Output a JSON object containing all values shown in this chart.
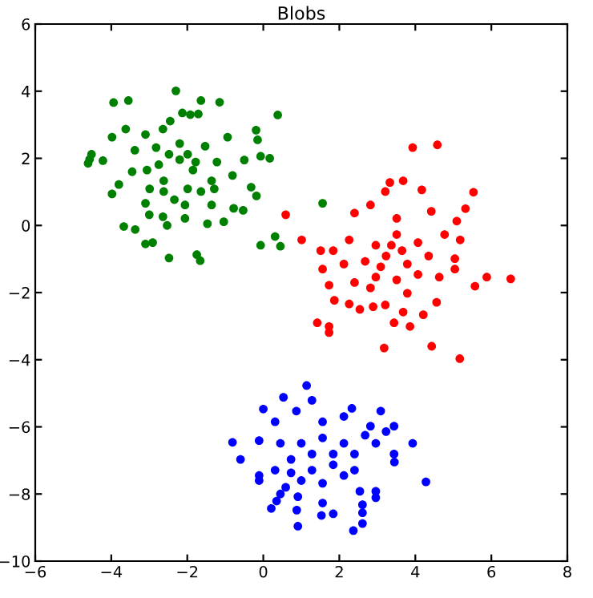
{
  "chart_data": {
    "type": "scatter",
    "title": "Blobs",
    "marker": "circle",
    "grid": false,
    "legend": false,
    "xlim": [
      -6,
      8
    ],
    "ylim": [
      -10,
      6
    ],
    "xticks": [
      -6,
      -4,
      -2,
      0,
      2,
      4,
      6,
      8
    ],
    "yticks": [
      -10,
      -8,
      -6,
      -4,
      -2,
      0,
      2,
      4,
      6
    ],
    "series": [
      {
        "color": "#008000",
        "x": [
          -2.3,
          -3.94,
          -3.55,
          -1.64,
          -1.15,
          0.38,
          -2.13,
          -1.92,
          -1.71,
          -3.62,
          -2.64,
          -2.45,
          -0.19,
          -0.15,
          -3.98,
          -3.1,
          -0.94,
          0.17,
          -4.22,
          -4.57,
          -4.52,
          -4.61,
          -3.38,
          -2.82,
          -2.2,
          -1.53,
          -0.5,
          -0.07,
          -3.98,
          -3.8,
          -3.45,
          -3.06,
          -2.62,
          -2.2,
          -1.85,
          -1.36,
          -0.81,
          -0.32,
          -0.18,
          -3.1,
          -3.0,
          -2.64,
          -2.06,
          -1.47,
          -1.04,
          -0.78,
          -0.53,
          -3.67,
          -3.37,
          -2.53,
          -3.1,
          -2.91,
          -2.48,
          -1.75,
          -1.66,
          -0.07,
          0.31,
          0.45,
          1.56,
          -2.62,
          -2.34,
          -1.99,
          -1.64,
          -1.29,
          -2.48,
          -1.99,
          -1.78,
          -2.75,
          -1.22,
          -2.99,
          -2.06,
          -1.36
        ],
        "values": [
          4.01,
          3.66,
          3.72,
          3.72,
          3.67,
          3.29,
          3.35,
          3.3,
          3.32,
          2.87,
          2.87,
          3.11,
          2.84,
          2.55,
          2.63,
          2.71,
          2.63,
          2.0,
          1.93,
          1.97,
          2.12,
          1.85,
          2.24,
          2.32,
          2.44,
          2.36,
          1.95,
          2.06,
          0.94,
          1.22,
          1.6,
          1.65,
          1.33,
          1.96,
          1.65,
          1.33,
          1.49,
          1.14,
          0.88,
          0.66,
          0.32,
          0.26,
          0.21,
          0.05,
          0.11,
          0.51,
          0.45,
          -0.03,
          -0.12,
          0.0,
          -0.55,
          -0.51,
          -0.97,
          -0.87,
          -1.05,
          -0.59,
          -0.33,
          -0.62,
          0.66,
          1.01,
          0.77,
          1.09,
          1.01,
          1.09,
          2.12,
          2.12,
          1.89,
          1.81,
          1.89,
          1.09,
          0.61,
          0.61
        ]
      },
      {
        "color": "#ff0000",
        "x": [
          3.93,
          4.58,
          3.33,
          3.68,
          5.53,
          5.32,
          0.59,
          1.01,
          3.21,
          4.17,
          4.42,
          5.09,
          2.4,
          2.82,
          3.51,
          1.51,
          1.84,
          2.26,
          2.96,
          3.51,
          4.07,
          4.77,
          5.18,
          1.56,
          2.12,
          2.68,
          3.23,
          3.79,
          4.35,
          5.04,
          5.88,
          6.51,
          5.57,
          1.73,
          2.4,
          2.96,
          3.51,
          4.07,
          4.63,
          5.04,
          1.87,
          2.26,
          2.89,
          3.21,
          3.68,
          4.21,
          4.56,
          2.54,
          1.42,
          1.73,
          1.73,
          3.44,
          3.86,
          3.18,
          4.43,
          5.17,
          3.37,
          3.09,
          2.82,
          3.79,
          3.65
        ],
        "values": [
          2.32,
          2.4,
          1.28,
          1.33,
          0.99,
          0.5,
          0.32,
          -0.43,
          1.01,
          1.06,
          0.42,
          0.13,
          0.37,
          0.61,
          0.21,
          -0.75,
          -0.75,
          -0.43,
          -0.59,
          -0.27,
          -0.51,
          -0.27,
          -0.43,
          -1.3,
          -1.15,
          -1.07,
          -0.91,
          -1.15,
          -0.91,
          -0.99,
          -1.54,
          -1.59,
          -1.81,
          -1.78,
          -1.7,
          -1.54,
          -1.62,
          -1.46,
          -1.54,
          -1.3,
          -2.23,
          -2.34,
          -2.42,
          -2.37,
          -2.58,
          -2.66,
          -2.29,
          -2.5,
          -2.9,
          -3.01,
          -3.19,
          -2.9,
          -3.01,
          -3.65,
          -3.6,
          -3.97,
          -0.59,
          -1.23,
          -1.86,
          -2.02,
          -0.75
        ]
      },
      {
        "color": "#0000ff",
        "x": [
          1.14,
          0.53,
          0.0,
          1.28,
          2.33,
          3.09,
          -0.81,
          -0.6,
          -0.11,
          0.31,
          0.87,
          1.56,
          2.12,
          2.82,
          3.44,
          3.93,
          3.44,
          3.45,
          4.28,
          2.96,
          2.96,
          2.54,
          2.61,
          2.61,
          2.61,
          2.37,
          1.84,
          1.53,
          1.56,
          0.91,
          0.88,
          0.91,
          0.45,
          0.35,
          0.21,
          -0.11,
          -0.11,
          0.31,
          0.59,
          1.0,
          1.56,
          2.12,
          2.4,
          0.73,
          1.28,
          1.84,
          2.4,
          2.96,
          0.45,
          1.0,
          1.56,
          2.12,
          2.68,
          1.84,
          1.28,
          0.73,
          3.23
        ],
        "values": [
          -4.77,
          -5.12,
          -5.47,
          -5.21,
          -5.45,
          -5.53,
          -6.46,
          -6.97,
          -6.41,
          -5.85,
          -5.53,
          -5.85,
          -5.69,
          -5.98,
          -5.98,
          -6.49,
          -6.81,
          -7.05,
          -7.64,
          -7.92,
          -8.11,
          -7.92,
          -8.32,
          -8.56,
          -8.88,
          -9.09,
          -8.59,
          -8.64,
          -8.27,
          -8.96,
          -8.48,
          -8.08,
          -8.0,
          -8.21,
          -8.43,
          -7.6,
          -7.45,
          -7.29,
          -7.8,
          -7.6,
          -7.68,
          -7.45,
          -7.29,
          -6.97,
          -6.81,
          -6.81,
          -6.81,
          -6.49,
          -6.49,
          -6.49,
          -6.33,
          -6.49,
          -6.25,
          -7.13,
          -7.29,
          -7.37,
          -6.14
        ]
      }
    ]
  }
}
